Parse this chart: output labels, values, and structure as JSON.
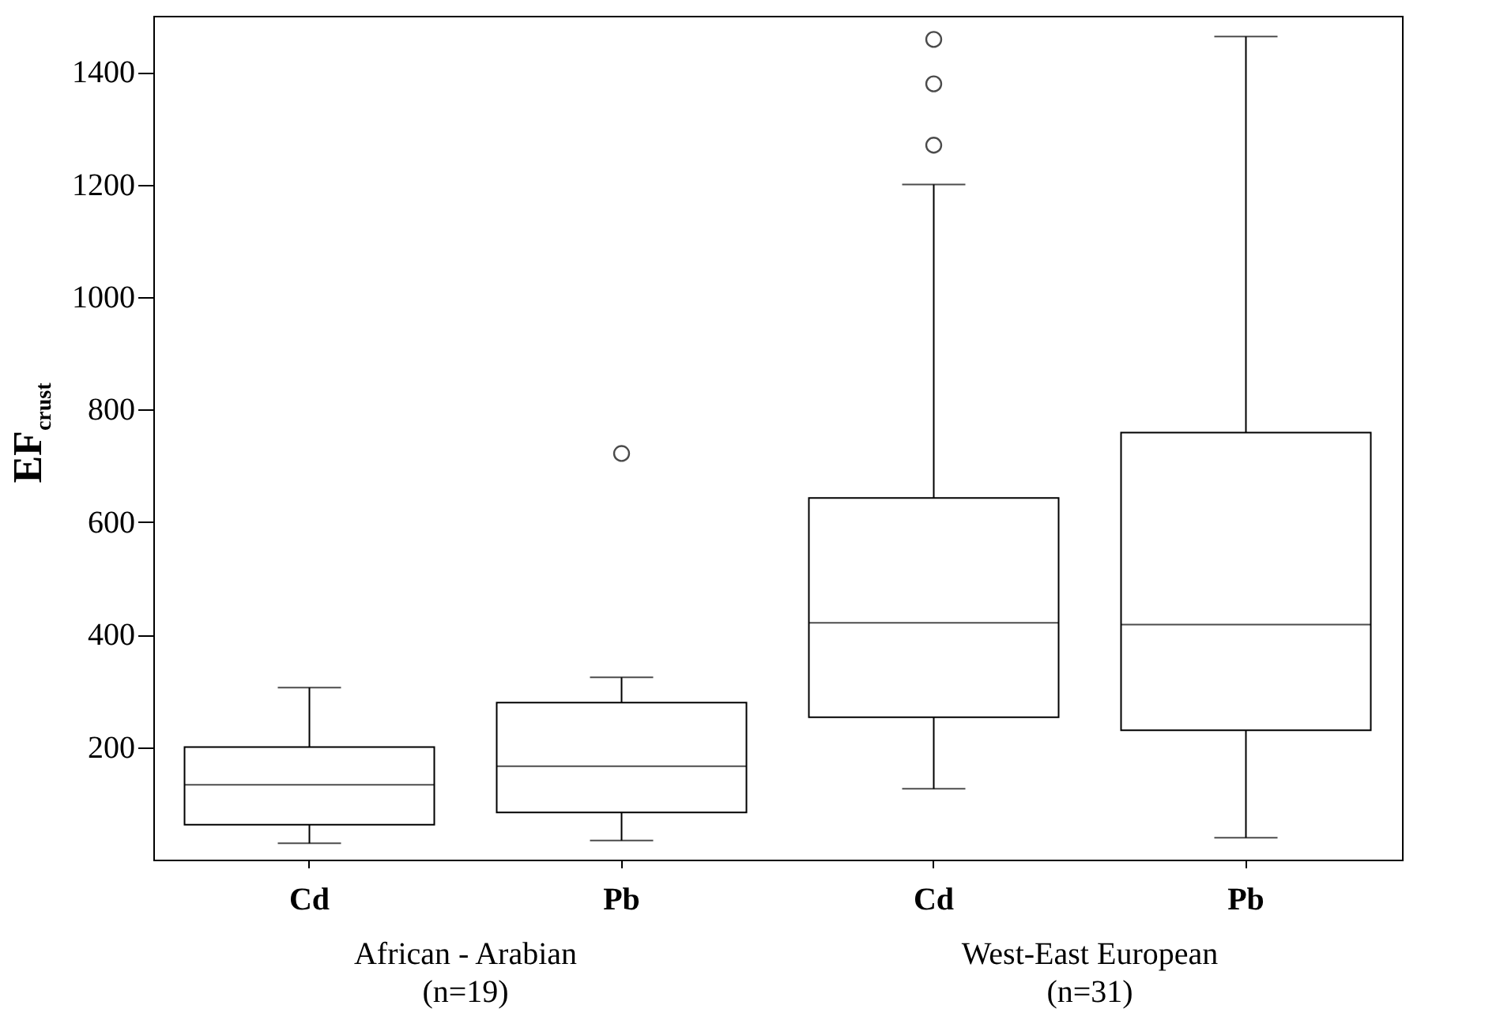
{
  "chart_data": {
    "type": "box",
    "ylabel": "EF$_{crust}$",
    "categories": [
      "Cd",
      "Pb",
      "Cd",
      "Pb"
    ],
    "boxes": [
      {
        "low": 29,
        "q1": 62,
        "median": 133,
        "q3": 200,
        "high": 306
      },
      {
        "low": 34,
        "q1": 84,
        "median": 166,
        "q3": 279,
        "high": 324,
        "outliers": [
          722
        ]
      },
      {
        "low": 126,
        "q1": 253,
        "median": 421,
        "q3": 643,
        "high": 1200,
        "outliers": [
          1270,
          1379,
          1458
        ]
      },
      {
        "low": 39,
        "q1": 230,
        "median": 418,
        "q3": 759,
        "high": 1463
      }
    ],
    "ylim": [
      0,
      1500
    ],
    "yticks": [
      200,
      400,
      600,
      800,
      1000,
      1200,
      1400
    ],
    "annotations": [
      "African - Arabian\n(n=19)",
      "West-East European\n(n=31)"
    ]
  }
}
